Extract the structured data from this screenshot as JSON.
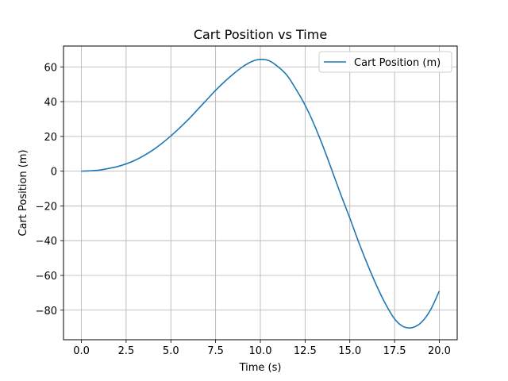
{
  "chart_data": {
    "type": "line",
    "title": "Cart Position vs Time",
    "xlabel": "Time (s)",
    "ylabel": "Cart Position (m)",
    "xlim": [
      -1.0,
      21.0
    ],
    "ylim": [
      -97,
      72
    ],
    "xticks": [
      0.0,
      2.5,
      5.0,
      7.5,
      10.0,
      12.5,
      15.0,
      17.5,
      20.0
    ],
    "xtick_labels": [
      "0.0",
      "2.5",
      "5.0",
      "7.5",
      "10.0",
      "12.5",
      "15.0",
      "17.5",
      "20.0"
    ],
    "yticks": [
      60,
      40,
      20,
      0,
      -20,
      -40,
      -60,
      -80
    ],
    "ytick_labels": [
      "60",
      "40",
      "20",
      "0",
      "−20",
      "−40",
      "−60",
      "−80"
    ],
    "grid": true,
    "legend_position": "top-right",
    "series": [
      {
        "name": "Cart Position (m)",
        "color": "#1f77b4",
        "x": [
          0,
          0.5,
          1,
          1.5,
          2,
          2.5,
          3,
          3.5,
          4,
          4.5,
          5,
          5.5,
          6,
          6.5,
          7,
          7.5,
          8,
          8.5,
          9,
          9.5,
          10,
          10.5,
          11,
          11.5,
          12,
          12.5,
          13,
          13.5,
          14,
          14.5,
          15,
          15.5,
          16,
          16.5,
          17,
          17.5,
          18,
          18.5,
          19,
          19.5,
          20
        ],
        "y": [
          0,
          0.2,
          0.6,
          1.5,
          2.6,
          4.2,
          6.3,
          9,
          12.2,
          16,
          20.3,
          25,
          30,
          35.5,
          41,
          46.5,
          51.5,
          56,
          60,
          63,
          64.3,
          63.5,
          60,
          55,
          47,
          38,
          27,
          14.3,
          0.5,
          -13.6,
          -27,
          -41,
          -54,
          -66,
          -76.5,
          -85,
          -89.5,
          -90,
          -87,
          -80,
          -69
        ]
      }
    ]
  }
}
